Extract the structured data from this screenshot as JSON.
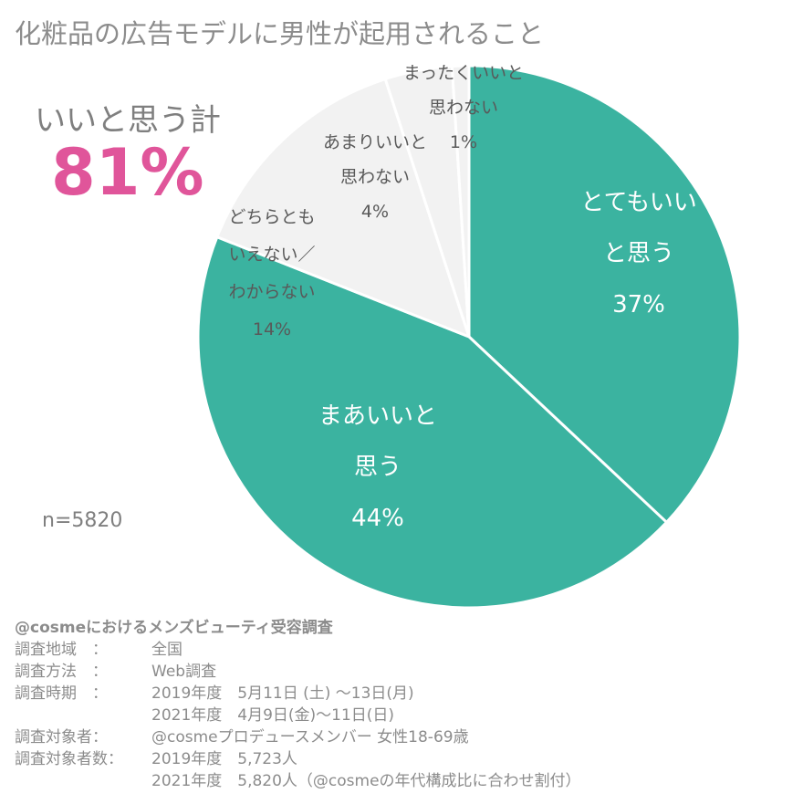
{
  "title": "化粧品の広告モデルに男性が起用されること",
  "aggregate": {
    "label": "いいと思う計",
    "value": "81%"
  },
  "n_label": "n=5820",
  "colors": {
    "positive": "#3bb3a0",
    "negative": "#f2f2f2",
    "accent": "#e0559a"
  },
  "chart_data": {
    "type": "pie",
    "slices": [
      {
        "lines": [
          "とてもいい",
          "と思う"
        ],
        "pct": "37%",
        "value": 37,
        "color": "#3bb3a0",
        "text_color": "#ffffff"
      },
      {
        "lines": [
          "まあいいと",
          "思う"
        ],
        "pct": "44%",
        "value": 44,
        "color": "#3bb3a0",
        "text_color": "#ffffff"
      },
      {
        "lines": [
          "どちらとも",
          "いえない／",
          "わからない"
        ],
        "pct": "14%",
        "value": 14,
        "color": "#f2f2f2",
        "text_color": "#595959"
      },
      {
        "lines": [
          "あまりいいと",
          "思わない"
        ],
        "pct": "4%",
        "value": 4,
        "color": "#f2f2f2",
        "text_color": "#595959"
      },
      {
        "lines": [
          "まったくいいと",
          "思わない"
        ],
        "pct": "1%",
        "value": 1,
        "color": "#f2f2f2",
        "text_color": "#595959"
      }
    ]
  },
  "notes": {
    "heading": "@cosmeにおけるメンズビューティ受容調査",
    "rows": [
      {
        "k": "調査地域　：",
        "v": "全国"
      },
      {
        "k": "調査方法　：",
        "v": "Web調査"
      },
      {
        "k": "調査時期　：",
        "v": "2019年度　5月11日 (土) ～13日(月)"
      },
      {
        "k": "",
        "v": "2021年度　4月9日(金)～11日(日)"
      },
      {
        "k": "調査対象者：",
        "v": "@cosmeプロデュースメンバー 女性18-69歳"
      },
      {
        "k": "調査対象者数：",
        "v": "2019年度　5,723人"
      },
      {
        "k": "",
        "v": "2021年度　5,820人（@cosmeの年代構成比に合わせ割付）"
      }
    ]
  }
}
